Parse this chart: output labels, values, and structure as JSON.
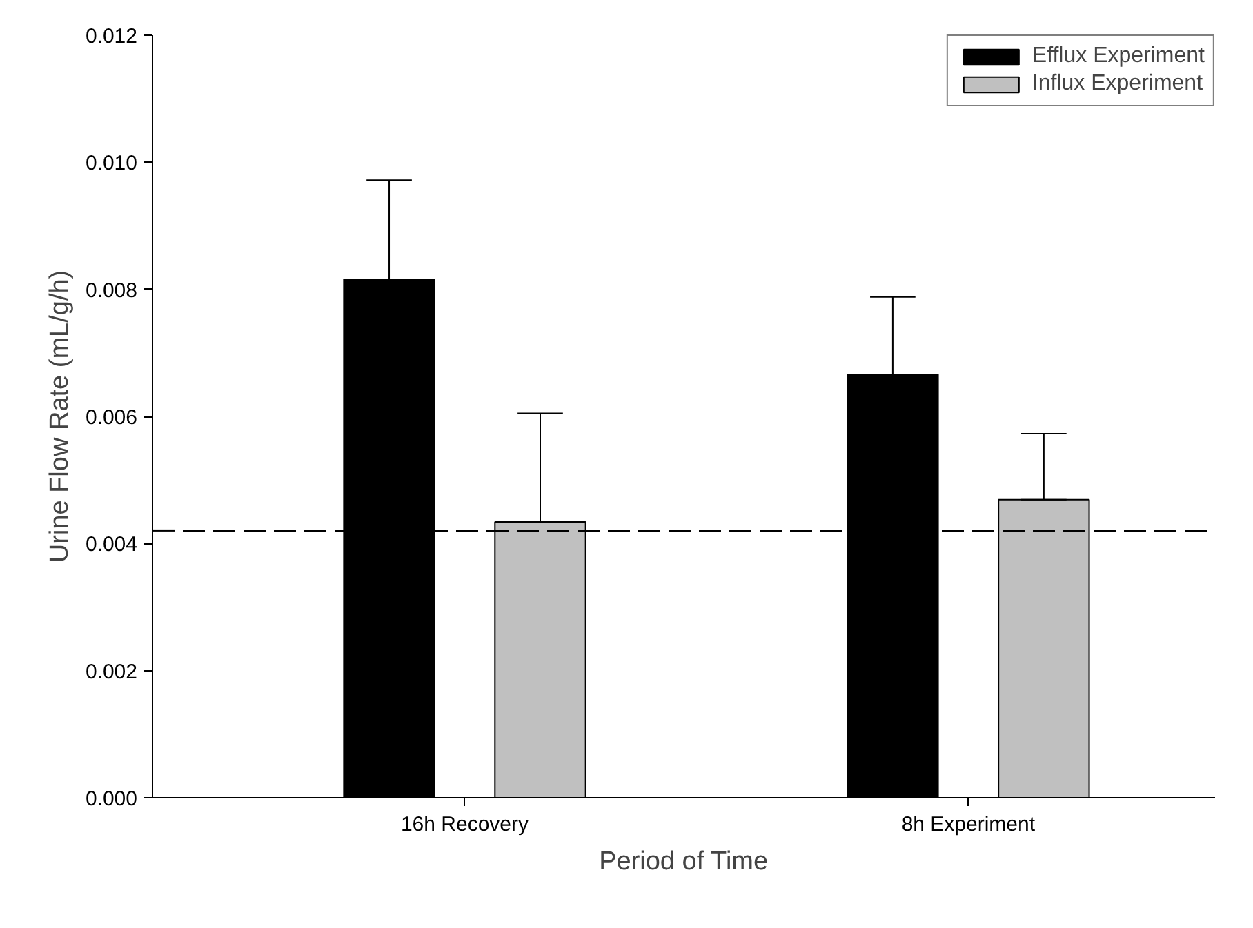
{
  "chart_data": {
    "type": "bar",
    "xlabel": "Period of Time",
    "ylabel": "Urine Flow Rate (mL/g/h)",
    "categories": [
      "16h Recovery",
      "8h Experiment"
    ],
    "series": [
      {
        "name": "Efflux Experiment",
        "color": "#000000",
        "values": [
          0.00816,
          0.00666
        ],
        "errors": [
          [
            0.00816,
            0.00972
          ],
          [
            0.00666,
            0.00788
          ]
        ]
      },
      {
        "name": "Influx Experiment",
        "color": "#c0c0c0",
        "values": [
          0.00434,
          0.00469
        ],
        "errors": [
          [
            0.00434,
            0.00605
          ],
          [
            0.00469,
            0.00573
          ]
        ]
      }
    ],
    "ylim": [
      0,
      0.012
    ],
    "yticks": [
      {
        "value": 0,
        "label": "0.000"
      },
      {
        "value": 0.002,
        "label": "0.002"
      },
      {
        "value": 0.004,
        "label": "0.004"
      },
      {
        "value": 0.006,
        "label": "0.006"
      },
      {
        "value": 0.008,
        "label": "0.008"
      },
      {
        "value": 0.01,
        "label": "0.010"
      },
      {
        "value": 0.012,
        "label": "0.012"
      }
    ],
    "ref_lines": [
      {
        "axis": "y",
        "value": 0.0042,
        "label": null,
        "color": "#000000",
        "line_style": "dashed"
      }
    ],
    "grid": false,
    "legend": "top right"
  }
}
